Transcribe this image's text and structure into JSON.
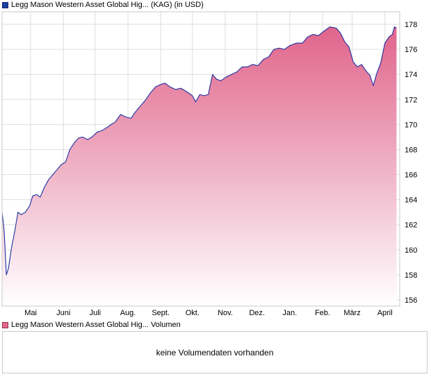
{
  "legend": {
    "price_label": "Legg Mason Western Asset Global Hig... (KAG) (in USD)",
    "volume_label": "Legg Mason Western Asset Global Hig... Volumen"
  },
  "volume": {
    "message": "keine Volumendaten vorhanden"
  },
  "colors": {
    "line": "#1e2f9e",
    "fill_top": "#e0648c",
    "fill_bottom": "#ffffff",
    "grid": "#dedede",
    "frame": "#c9c9c9"
  },
  "chart_data": {
    "type": "area",
    "grid": true,
    "ylim": [
      155.5,
      179
    ],
    "y_ticks": [
      156,
      158,
      160,
      162,
      164,
      166,
      168,
      170,
      172,
      174,
      176,
      178
    ],
    "x_ticks": [
      {
        "label": "Mai",
        "date": "2024-05-01"
      },
      {
        "label": "Juni",
        "date": "2024-06-01"
      },
      {
        "label": "Juli",
        "date": "2024-07-01"
      },
      {
        "label": "Aug.",
        "date": "2024-08-01"
      },
      {
        "label": "Sept.",
        "date": "2024-09-01"
      },
      {
        "label": "Okt.",
        "date": "2024-10-01"
      },
      {
        "label": "Nov.",
        "date": "2024-11-01"
      },
      {
        "label": "Dez.",
        "date": "2024-12-01"
      },
      {
        "label": "Jan.",
        "date": "2025-01-01"
      },
      {
        "label": "Feb.",
        "date": "2025-02-01"
      },
      {
        "label": "März",
        "date": "2025-03-01"
      },
      {
        "label": "April",
        "date": "2025-04-01"
      }
    ],
    "xlim": [
      "2024-04-04",
      "2025-04-15"
    ],
    "series": [
      {
        "values": [
          [
            "2024-04-04",
            163.0
          ],
          [
            "2024-04-06",
            161.5
          ],
          [
            "2024-04-08",
            158.0
          ],
          [
            "2024-04-10",
            158.5
          ],
          [
            "2024-04-13",
            160.2
          ],
          [
            "2024-04-16",
            161.5
          ],
          [
            "2024-04-19",
            163.0
          ],
          [
            "2024-04-22",
            162.8
          ],
          [
            "2024-04-26",
            163.0
          ],
          [
            "2024-04-30",
            163.5
          ],
          [
            "2024-05-03",
            164.3
          ],
          [
            "2024-05-07",
            164.4
          ],
          [
            "2024-05-10",
            164.2
          ],
          [
            "2024-05-14",
            165.0
          ],
          [
            "2024-05-18",
            165.6
          ],
          [
            "2024-05-22",
            166.0
          ],
          [
            "2024-05-26",
            166.4
          ],
          [
            "2024-05-30",
            166.8
          ],
          [
            "2024-06-03",
            167.0
          ],
          [
            "2024-06-07",
            168.0
          ],
          [
            "2024-06-11",
            168.5
          ],
          [
            "2024-06-15",
            168.9
          ],
          [
            "2024-06-19",
            169.0
          ],
          [
            "2024-06-24",
            168.8
          ],
          [
            "2024-06-28",
            169.0
          ],
          [
            "2024-07-03",
            169.4
          ],
          [
            "2024-07-07",
            169.5
          ],
          [
            "2024-07-11",
            169.7
          ],
          [
            "2024-07-16",
            170.0
          ],
          [
            "2024-07-20",
            170.2
          ],
          [
            "2024-07-25",
            170.8
          ],
          [
            "2024-07-30",
            170.6
          ],
          [
            "2024-08-04",
            170.5
          ],
          [
            "2024-08-08",
            171.0
          ],
          [
            "2024-08-13",
            171.5
          ],
          [
            "2024-08-18",
            172.0
          ],
          [
            "2024-08-22",
            172.5
          ],
          [
            "2024-08-27",
            173.0
          ],
          [
            "2024-09-01",
            173.2
          ],
          [
            "2024-09-05",
            173.3
          ],
          [
            "2024-09-10",
            173.0
          ],
          [
            "2024-09-15",
            172.8
          ],
          [
            "2024-09-20",
            172.9
          ],
          [
            "2024-09-26",
            172.6
          ],
          [
            "2024-10-01",
            172.3
          ],
          [
            "2024-10-04",
            171.8
          ],
          [
            "2024-10-08",
            172.4
          ],
          [
            "2024-10-12",
            172.3
          ],
          [
            "2024-10-16",
            172.4
          ],
          [
            "2024-10-20",
            174.0
          ],
          [
            "2024-10-24",
            173.6
          ],
          [
            "2024-10-28",
            173.5
          ],
          [
            "2024-11-02",
            173.8
          ],
          [
            "2024-11-07",
            174.0
          ],
          [
            "2024-11-12",
            174.2
          ],
          [
            "2024-11-17",
            174.6
          ],
          [
            "2024-11-22",
            174.6
          ],
          [
            "2024-11-27",
            174.8
          ],
          [
            "2024-12-02",
            174.7
          ],
          [
            "2024-12-07",
            175.2
          ],
          [
            "2024-12-12",
            175.4
          ],
          [
            "2024-12-17",
            176.0
          ],
          [
            "2024-12-22",
            176.1
          ],
          [
            "2024-12-27",
            176.0
          ],
          [
            "2025-01-01",
            176.3
          ],
          [
            "2025-01-07",
            176.5
          ],
          [
            "2025-01-13",
            176.5
          ],
          [
            "2025-01-18",
            177.0
          ],
          [
            "2025-01-23",
            177.2
          ],
          [
            "2025-01-28",
            177.1
          ],
          [
            "2025-02-03",
            177.5
          ],
          [
            "2025-02-08",
            177.8
          ],
          [
            "2025-02-14",
            177.7
          ],
          [
            "2025-02-18",
            177.3
          ],
          [
            "2025-02-22",
            176.6
          ],
          [
            "2025-02-26",
            176.2
          ],
          [
            "2025-03-02",
            175.0
          ],
          [
            "2025-03-06",
            174.6
          ],
          [
            "2025-03-10",
            174.8
          ],
          [
            "2025-03-14",
            174.3
          ],
          [
            "2025-03-18",
            173.9
          ],
          [
            "2025-03-21",
            173.1
          ],
          [
            "2025-03-24",
            174.0
          ],
          [
            "2025-03-28",
            174.9
          ],
          [
            "2025-04-01",
            176.5
          ],
          [
            "2025-04-05",
            177.0
          ],
          [
            "2025-04-08",
            177.2
          ],
          [
            "2025-04-10",
            177.8
          ],
          [
            "2025-04-12",
            177.7
          ]
        ]
      }
    ]
  }
}
